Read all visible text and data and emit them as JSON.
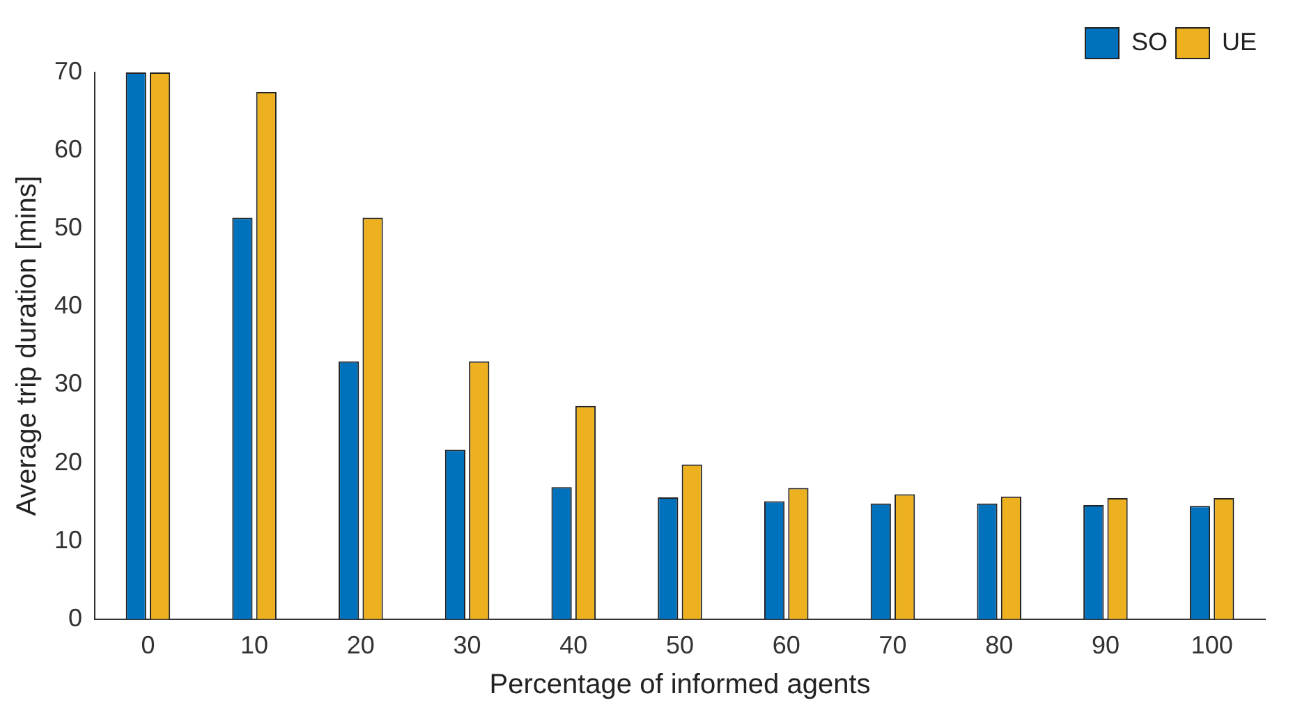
{
  "chart_data": {
    "type": "bar",
    "xlabel": "Percentage of informed agents",
    "ylabel": "Average trip duration [mins]",
    "categories": [
      "0",
      "10",
      "20",
      "30",
      "40",
      "50",
      "60",
      "70",
      "80",
      "90",
      "100"
    ],
    "series": [
      {
        "name": "SO",
        "color": "#0072bd",
        "values": [
          70,
          51.4,
          33,
          21.7,
          16.9,
          15.6,
          15.1,
          14.8,
          14.8,
          14.6,
          14.5
        ]
      },
      {
        "name": "UE",
        "color": "#edb120",
        "values": [
          70,
          67.5,
          51.4,
          33,
          27.3,
          19.8,
          16.8,
          16,
          15.7,
          15.5,
          15.5
        ]
      }
    ],
    "ylim": [
      0,
      70
    ],
    "yticks": [
      0,
      10,
      20,
      30,
      40,
      50,
      60,
      70
    ],
    "grid": false,
    "legend": "top right"
  }
}
